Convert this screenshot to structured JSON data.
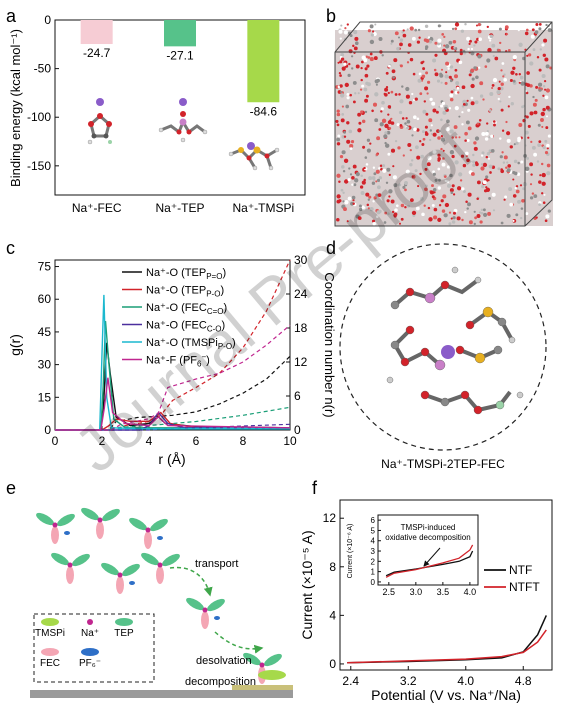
{
  "panel_labels": [
    "a",
    "b",
    "c",
    "d",
    "e",
    "f"
  ],
  "watermark": "Journal Pre-proof",
  "chart_data": [
    {
      "panel": "a",
      "type": "bar",
      "ylabel": "Binding energy (kcal mol⁻¹)",
      "ylim": [
        -180,
        0
      ],
      "yticks": [
        "0",
        "-50",
        "-100",
        "-150"
      ],
      "categories": [
        "Na⁺-FEC",
        "Na⁺-TEP",
        "Na⁺-TMSPi"
      ],
      "values": [
        -24.7,
        -27.1,
        -84.6
      ],
      "value_labels": [
        "-24.7",
        "-27.1",
        "-84.6"
      ],
      "colors": [
        "#f6ccd4",
        "#56c28a",
        "#a6d94a"
      ]
    },
    {
      "panel": "c",
      "type": "line",
      "xlabel": "r (Å)",
      "ylabel": "g(r)",
      "y2label": "Coordination number n(r)",
      "xlim": [
        0,
        10
      ],
      "ylim": [
        0,
        78
      ],
      "y2lim": [
        0,
        30
      ],
      "xticks": [
        "0",
        "2",
        "4",
        "6",
        "8",
        "10"
      ],
      "yticks": [
        "0",
        "15",
        "30",
        "45",
        "60",
        "75"
      ],
      "y2ticks": [
        "0",
        "6",
        "12",
        "18",
        "24",
        "30"
      ],
      "series": [
        {
          "name": "Na⁺-O (TEP",
          "sub": "P=O",
          "tail": ")",
          "color": "#111111",
          "g": [
            [
              0,
              0
            ],
            [
              1.9,
              0
            ],
            [
              2.05,
              8
            ],
            [
              2.2,
              40
            ],
            [
              2.35,
              26
            ],
            [
              2.6,
              6
            ],
            [
              3.2,
              2
            ],
            [
              4,
              3
            ],
            [
              4.4,
              6
            ],
            [
              4.7,
              3
            ],
            [
              6,
              1.5
            ],
            [
              10,
              1
            ]
          ],
          "n": [
            [
              0,
              0
            ],
            [
              2.3,
              0
            ],
            [
              2.6,
              1.5
            ],
            [
              3.5,
              2.2
            ],
            [
              5,
              2.6
            ],
            [
              6,
              3.2
            ],
            [
              7,
              4.6
            ],
            [
              8,
              6.5
            ],
            [
              9,
              9
            ],
            [
              10,
              13
            ]
          ]
        },
        {
          "name": "Na⁺-O (TEP",
          "sub": "P-O",
          "tail": ")",
          "color": "#d2232a",
          "g": [
            [
              0,
              0
            ],
            [
              2.0,
              0
            ],
            [
              2.3,
              2
            ],
            [
              2.6,
              5
            ],
            [
              3.2,
              4
            ],
            [
              4,
              4
            ],
            [
              4.5,
              8
            ],
            [
              4.9,
              3
            ],
            [
              6,
              1
            ],
            [
              10,
              1
            ]
          ],
          "n": [
            [
              0,
              0
            ],
            [
              2.5,
              0
            ],
            [
              3,
              0.8
            ],
            [
              4,
              1.5
            ],
            [
              4.5,
              2.6
            ],
            [
              5,
              5.2
            ],
            [
              6,
              7.5
            ],
            [
              7,
              10
            ],
            [
              8,
              14.5
            ],
            [
              9,
              21
            ],
            [
              10,
              30
            ]
          ]
        },
        {
          "name": "Na⁺-O (FEC",
          "sub": "C=O",
          "tail": ")",
          "color": "#1a9e77",
          "g": [
            [
              0,
              0
            ],
            [
              1.95,
              0
            ],
            [
              2.05,
              20
            ],
            [
              2.15,
              50
            ],
            [
              2.3,
              30
            ],
            [
              2.5,
              5
            ],
            [
              3,
              1
            ],
            [
              4.5,
              1
            ],
            [
              10,
              1
            ]
          ],
          "n": [
            [
              0,
              0
            ],
            [
              2.2,
              0
            ],
            [
              2.5,
              0.4
            ],
            [
              4,
              0.8
            ],
            [
              6,
              1.5
            ],
            [
              8,
              2.6
            ],
            [
              10,
              4
            ]
          ]
        },
        {
          "name": "Na⁺-O (FEC",
          "sub": "C-O",
          "tail": ")",
          "color": "#4b2f9e",
          "g": [
            [
              0,
              0
            ],
            [
              3.6,
              0
            ],
            [
              4,
              2
            ],
            [
              4.4,
              8
            ],
            [
              4.8,
              3
            ],
            [
              5.5,
              1
            ],
            [
              10,
              1
            ]
          ],
          "n": [
            [
              0,
              0
            ],
            [
              4,
              0
            ],
            [
              5,
              0.3
            ],
            [
              6,
              0.4
            ],
            [
              8,
              0.7
            ],
            [
              10,
              1
            ]
          ]
        },
        {
          "name": "Na⁺-O (TMSPi",
          "sub": "P-O",
          "tail": ")",
          "color": "#1cb8cf",
          "g": [
            [
              0,
              0
            ],
            [
              1.9,
              0
            ],
            [
              2.0,
              35
            ],
            [
              2.08,
              62
            ],
            [
              2.2,
              15
            ],
            [
              2.4,
              1
            ],
            [
              4,
              0.5
            ],
            [
              10,
              0.5
            ]
          ],
          "n": [
            [
              0,
              0
            ],
            [
              2.2,
              0
            ],
            [
              2.5,
              0.2
            ],
            [
              6,
              0.3
            ],
            [
              10,
              0.4
            ]
          ]
        },
        {
          "name": "Na⁺-F (PF",
          "sub": "6",
          "sup": "−",
          "tail": ")",
          "color": "#c0268f",
          "g": [
            [
              0,
              0
            ],
            [
              1.95,
              0
            ],
            [
              2.1,
              10
            ],
            [
              2.25,
              24
            ],
            [
              2.45,
              8
            ],
            [
              3,
              3
            ],
            [
              4,
              2
            ],
            [
              4.4,
              6
            ],
            [
              4.8,
              2
            ],
            [
              10,
              1
            ]
          ],
          "n": [
            [
              0,
              0
            ],
            [
              2.4,
              0
            ],
            [
              2.8,
              1
            ],
            [
              4,
              2
            ],
            [
              4.4,
              3
            ],
            [
              4.8,
              7.5
            ],
            [
              6,
              9
            ],
            [
              7,
              10
            ],
            [
              8,
              12
            ],
            [
              9,
              15
            ],
            [
              10,
              18.5
            ]
          ]
        }
      ]
    },
    {
      "panel": "f",
      "type": "line",
      "xlabel": "Potential (V vs. Na⁺/Na)",
      "ylabel": "Current (×10⁻⁵ A)",
      "xlim": [
        2.25,
        5.2
      ],
      "ylim": [
        -0.5,
        13.5
      ],
      "xticks": [
        "2.4",
        "3.2",
        "4.0",
        "4.8"
      ],
      "yticks": [
        "0",
        "4",
        "8",
        "12"
      ],
      "series": [
        {
          "name": "NTF",
          "color": "#111111",
          "points": [
            [
              2.35,
              0.1
            ],
            [
              3.2,
              0.2
            ],
            [
              4.0,
              0.35
            ],
            [
              4.5,
              0.5
            ],
            [
              4.8,
              1.0
            ],
            [
              5.0,
              2.4
            ],
            [
              5.12,
              4.0
            ]
          ]
        },
        {
          "name": "NTFT",
          "color": "#d2232a",
          "points": [
            [
              2.35,
              0.1
            ],
            [
              3.2,
              0.25
            ],
            [
              4.0,
              0.4
            ],
            [
              4.5,
              0.6
            ],
            [
              4.8,
              0.95
            ],
            [
              5.0,
              1.8
            ],
            [
              5.12,
              2.8
            ]
          ]
        }
      ],
      "inset": {
        "annotation": "TMSPi-induced oxidative decomposition",
        "ylabel": "Current (×10⁻⁶ A)",
        "xlim": [
          2.3,
          4.15
        ],
        "ylim": [
          -0.3,
          6.5
        ],
        "xticks": [
          "2.5",
          "3.0",
          "3.5",
          "4.0"
        ],
        "yticks": [
          "0",
          "1",
          "2",
          "3",
          "4",
          "5",
          "6"
        ],
        "series": [
          {
            "name": "NTF",
            "color": "#111111",
            "points": [
              [
                2.45,
                0.6
              ],
              [
                2.6,
                0.95
              ],
              [
                3.0,
                1.25
              ],
              [
                3.5,
                1.7
              ],
              [
                3.8,
                2.0
              ],
              [
                4.0,
                2.45
              ],
              [
                4.05,
                3.0
              ]
            ]
          },
          {
            "name": "NTFT",
            "color": "#d2232a",
            "points": [
              [
                2.45,
                0.45
              ],
              [
                2.6,
                0.85
              ],
              [
                3.0,
                1.2
              ],
              [
                3.5,
                1.85
              ],
              [
                3.8,
                2.3
              ],
              [
                4.0,
                3.1
              ],
              [
                4.05,
                3.6
              ]
            ]
          }
        ]
      }
    }
  ],
  "panel_d": {
    "caption": "Na⁺-TMSPi-2TEP-FEC"
  },
  "panel_e": {
    "labels": [
      "transport",
      "desolvation",
      "decomposition"
    ],
    "legend": [
      {
        "label": "TMSPi",
        "color": "#a6d94a"
      },
      {
        "label": "Na⁺",
        "color": "#c0268f"
      },
      {
        "label": "TEP",
        "color": "#56c28a"
      },
      {
        "label": "FEC",
        "color": "#f4a6b4"
      },
      {
        "label": "PF₆⁻",
        "color": "#2e6fc7"
      }
    ]
  }
}
